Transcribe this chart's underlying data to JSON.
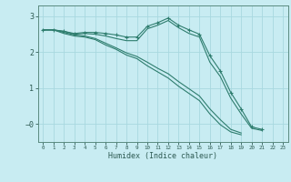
{
  "xlabel": "Humidex (Indice chaleur)",
  "bg_color": "#c8ecf2",
  "line_color": "#2e7d6e",
  "grid_color": "#a8d8e0",
  "spine_color": "#5a8a80",
  "tick_color": "#2d5a52",
  "xlim": [
    -0.5,
    23.5
  ],
  "ylim": [
    -0.5,
    3.3
  ],
  "x": [
    0,
    1,
    2,
    3,
    4,
    5,
    6,
    7,
    8,
    9,
    10,
    11,
    12,
    13,
    14,
    15,
    16,
    17,
    18,
    19,
    20,
    21,
    22,
    23
  ],
  "line1": [
    2.62,
    2.62,
    2.58,
    2.52,
    2.55,
    2.55,
    2.52,
    2.48,
    2.42,
    2.42,
    2.72,
    2.82,
    2.95,
    2.75,
    2.62,
    2.5,
    1.9,
    1.48,
    0.88,
    0.42,
    -0.08,
    -0.15,
    null,
    null
  ],
  "line2": [
    2.62,
    2.62,
    2.58,
    2.5,
    2.52,
    2.5,
    2.45,
    2.38,
    2.32,
    2.32,
    2.65,
    2.75,
    2.88,
    2.68,
    2.52,
    2.42,
    1.72,
    1.32,
    0.72,
    0.28,
    -0.12,
    -0.18,
    null,
    null
  ],
  "line3": [
    2.62,
    2.62,
    2.55,
    2.48,
    2.45,
    2.38,
    2.25,
    2.12,
    1.98,
    1.88,
    1.72,
    1.55,
    1.4,
    1.18,
    0.98,
    0.78,
    0.42,
    0.12,
    -0.15,
    -0.25,
    null,
    null,
    null,
    null
  ],
  "line4": [
    2.62,
    2.62,
    2.52,
    2.45,
    2.42,
    2.35,
    2.2,
    2.08,
    1.92,
    1.82,
    1.62,
    1.45,
    1.28,
    1.05,
    0.85,
    0.65,
    0.28,
    -0.02,
    -0.22,
    -0.3,
    null,
    null,
    null,
    null
  ]
}
